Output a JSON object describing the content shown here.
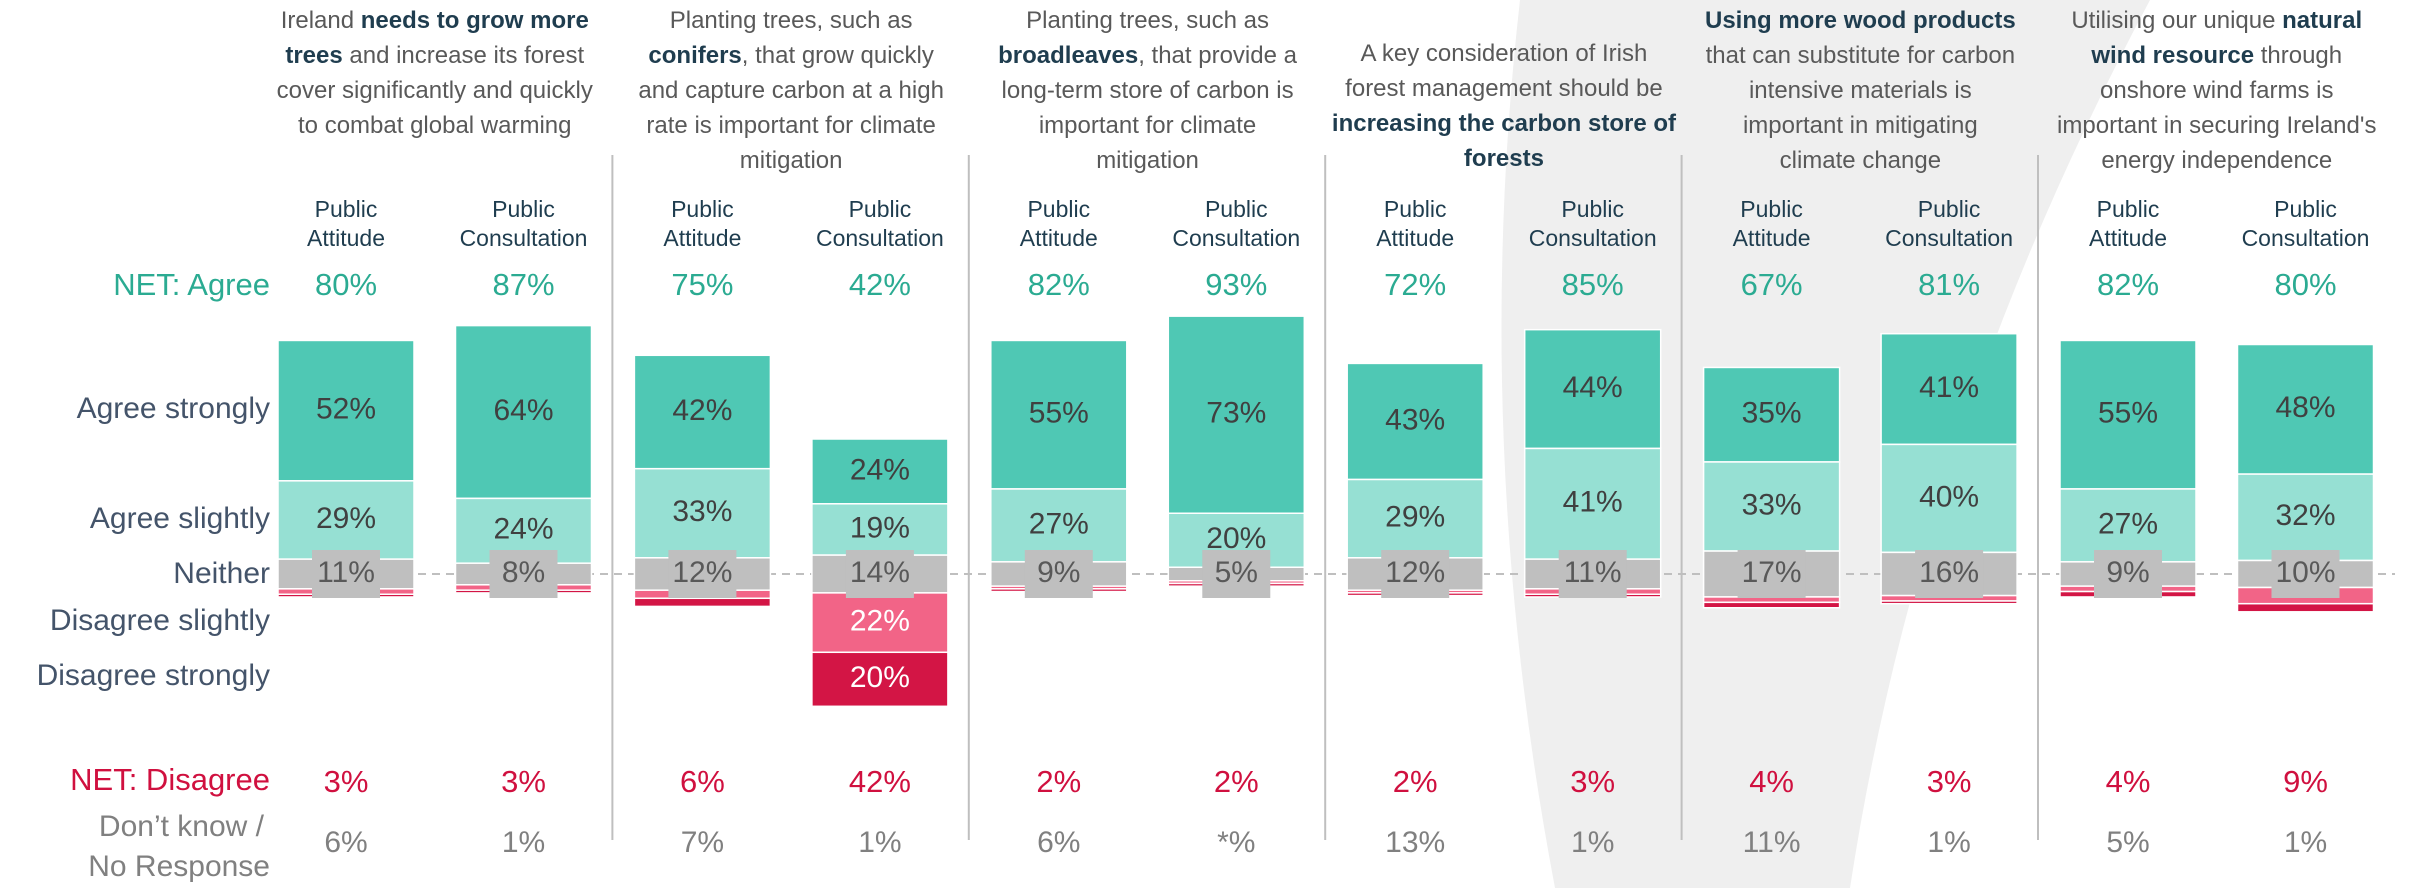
{
  "chart_data": {
    "type": "diverging-bar",
    "series": [
      {
        "name": "Agree strongly",
        "color": "#4fc8b4"
      },
      {
        "name": "Agree slightly",
        "color": "#96e0d3"
      },
      {
        "name": "Neither",
        "color": "#bfbfbf"
      },
      {
        "name": "Disagree slightly",
        "color": "#f26487"
      },
      {
        "name": "Disagree strongly",
        "color": "#d31545"
      }
    ],
    "net_agree_label": "NET: Agree",
    "net_disagree_label": "NET: Disagree",
    "dont_know_label": [
      "Don’t know /",
      "No Response"
    ],
    "column_headers": [
      [
        "Public",
        "Attitude"
      ],
      [
        "Public",
        "Consultation"
      ]
    ],
    "statements": [
      {
        "title": [
          [
            {
              "text": "Ireland "
            },
            {
              "text": "needs to grow more",
              "bold": true
            }
          ],
          [
            {
              "text": "trees",
              "bold": true
            },
            {
              "text": " and increase its forest"
            }
          ],
          [
            {
              "text": "cover significantly and quickly"
            }
          ],
          [
            {
              "text": "to combat global warming"
            }
          ]
        ],
        "columns": [
          {
            "values": [
              52,
              29,
              11,
              2,
              1
            ],
            "value_labels": [
              "52%",
              "29%",
              "11%",
              null,
              null
            ],
            "net_agree": {
              "value": 80,
              "label": "80%"
            },
            "net_disagree": {
              "value": 3,
              "label": "3%"
            },
            "dont_know": {
              "value": 6,
              "label": "6%"
            }
          },
          {
            "values": [
              64,
              24,
              8,
              2,
              1
            ],
            "value_labels": [
              "64%",
              "24%",
              "8%",
              null,
              null
            ],
            "net_agree": {
              "value": 87,
              "label": "87%"
            },
            "net_disagree": {
              "value": 3,
              "label": "3%"
            },
            "dont_know": {
              "value": 1,
              "label": "1%"
            }
          }
        ]
      },
      {
        "title": [
          [
            {
              "text": "Planting trees, such as"
            }
          ],
          [
            {
              "text": "conifers",
              "bold": true
            },
            {
              "text": ", that grow quickly"
            }
          ],
          [
            {
              "text": "and capture carbon at a high"
            }
          ],
          [
            {
              "text": "rate is important for climate"
            }
          ],
          [
            {
              "text": "mitigation"
            }
          ]
        ],
        "columns": [
          {
            "values": [
              42,
              33,
              12,
              3,
              3
            ],
            "value_labels": [
              "42%",
              "33%",
              "12%",
              null,
              null
            ],
            "net_agree": {
              "value": 75,
              "label": "75%"
            },
            "net_disagree": {
              "value": 6,
              "label": "6%"
            },
            "dont_know": {
              "value": 7,
              "label": "7%"
            }
          },
          {
            "values": [
              24,
              19,
              14,
              22,
              20
            ],
            "value_labels": [
              "24%",
              "19%",
              "14%",
              "22%",
              "20%"
            ],
            "net_agree": {
              "value": 42,
              "label": "42%"
            },
            "net_disagree": {
              "value": 42,
              "label": "42%"
            },
            "dont_know": {
              "value": 1,
              "label": "1%"
            }
          }
        ]
      },
      {
        "title": [
          [
            {
              "text": "Planting trees, such as"
            }
          ],
          [
            {
              "text": "broadleaves",
              "bold": true
            },
            {
              "text": ", that provide a"
            }
          ],
          [
            {
              "text": "long-term store of carbon is"
            }
          ],
          [
            {
              "text": "important for climate"
            }
          ],
          [
            {
              "text": "mitigation"
            }
          ]
        ],
        "columns": [
          {
            "values": [
              55,
              27,
              9,
              1,
              1
            ],
            "value_labels": [
              "55%",
              "27%",
              "9%",
              null,
              null
            ],
            "net_agree": {
              "value": 82,
              "label": "82%"
            },
            "net_disagree": {
              "value": 2,
              "label": "2%"
            },
            "dont_know": {
              "value": 6,
              "label": "6%"
            }
          },
          {
            "values": [
              73,
              20,
              5,
              1,
              1
            ],
            "value_labels": [
              "73%",
              "20%",
              "5%",
              null,
              null
            ],
            "net_agree": {
              "value": 93,
              "label": "93%"
            },
            "net_disagree": {
              "value": 2,
              "label": "2%"
            },
            "dont_know": {
              "value": 0,
              "label": "*%"
            }
          }
        ]
      },
      {
        "title": [
          [
            {
              "text": "A key consideration of Irish"
            }
          ],
          [
            {
              "text": "forest management should be"
            }
          ],
          [
            {
              "text": "increasing the carbon store of",
              "bold": true
            }
          ],
          [
            {
              "text": "forests",
              "bold": true
            }
          ]
        ],
        "columns": [
          {
            "values": [
              43,
              29,
              12,
              1,
              1
            ],
            "value_labels": [
              "43%",
              "29%",
              "12%",
              null,
              null
            ],
            "net_agree": {
              "value": 72,
              "label": "72%"
            },
            "net_disagree": {
              "value": 2,
              "label": "2%"
            },
            "dont_know": {
              "value": 13,
              "label": "13%"
            }
          },
          {
            "values": [
              44,
              41,
              11,
              2,
              1
            ],
            "value_labels": [
              "44%",
              "41%",
              "11%",
              null,
              null
            ],
            "net_agree": {
              "value": 85,
              "label": "85%"
            },
            "net_disagree": {
              "value": 3,
              "label": "3%"
            },
            "dont_know": {
              "value": 1,
              "label": "1%"
            }
          }
        ]
      },
      {
        "title": [
          [
            {
              "text": "Using more wood products",
              "bold": true
            }
          ],
          [
            {
              "text": "that can substitute for carbon"
            }
          ],
          [
            {
              "text": "intensive materials is"
            }
          ],
          [
            {
              "text": "important in mitigating"
            }
          ],
          [
            {
              "text": "climate change"
            }
          ]
        ],
        "columns": [
          {
            "values": [
              35,
              33,
              17,
              2,
              2
            ],
            "value_labels": [
              "35%",
              "33%",
              "17%",
              null,
              null
            ],
            "net_agree": {
              "value": 67,
              "label": "67%"
            },
            "net_disagree": {
              "value": 4,
              "label": "4%"
            },
            "dont_know": {
              "value": 11,
              "label": "11%"
            }
          },
          {
            "values": [
              41,
              40,
              16,
              2,
              1
            ],
            "value_labels": [
              "41%",
              "40%",
              "16%",
              null,
              null
            ],
            "net_agree": {
              "value": 81,
              "label": "81%"
            },
            "net_disagree": {
              "value": 3,
              "label": "3%"
            },
            "dont_know": {
              "value": 1,
              "label": "1%"
            }
          }
        ]
      },
      {
        "title": [
          [
            {
              "text": "Utilising our unique "
            },
            {
              "text": "natural",
              "bold": true
            }
          ],
          [
            {
              "text": "wind resource",
              "bold": true
            },
            {
              "text": " through"
            }
          ],
          [
            {
              "text": "onshore wind farms is"
            }
          ],
          [
            {
              "text": "important in securing Ireland's"
            }
          ],
          [
            {
              "text": "energy independence"
            }
          ]
        ],
        "columns": [
          {
            "values": [
              55,
              27,
              9,
              2,
              2
            ],
            "value_labels": [
              "55%",
              "27%",
              "9%",
              null,
              null
            ],
            "net_agree": {
              "value": 82,
              "label": "82%"
            },
            "net_disagree": {
              "value": 4,
              "label": "4%"
            },
            "dont_know": {
              "value": 5,
              "label": "5%"
            }
          },
          {
            "values": [
              48,
              32,
              10,
              6,
              3
            ],
            "value_labels": [
              "48%",
              "32%",
              "10%",
              null,
              null
            ],
            "net_agree": {
              "value": 80,
              "label": "80%"
            },
            "net_disagree": {
              "value": 9,
              "label": "9%"
            },
            "dont_know": {
              "value": 1,
              "label": "1%"
            }
          }
        ]
      }
    ]
  }
}
